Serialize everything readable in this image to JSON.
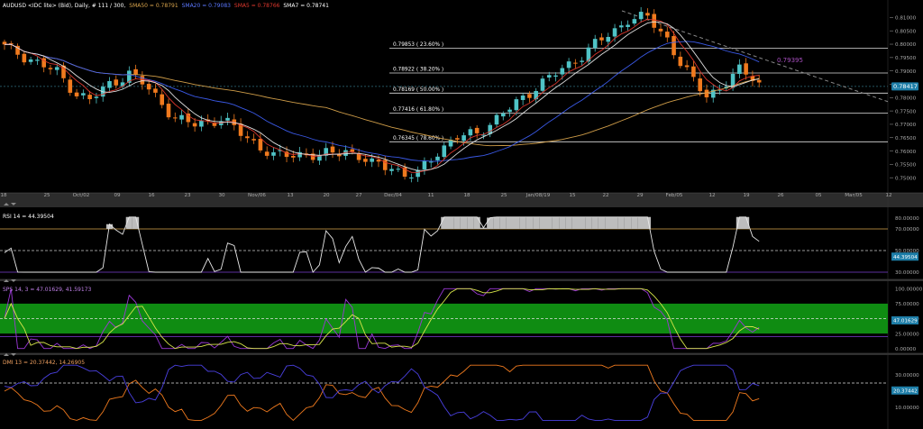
{
  "header": {
    "instrument": "AUDUSD <IDC lite> (Bid), Daily, # 111 / 300,",
    "sma50": "SMA50 = 0.78791",
    "sma20": "SMA20 = 0.79083",
    "sma5": "SMA5 = 0.78766",
    "sma7": "SMA7 = 0.78741"
  },
  "colors": {
    "background": "#000000",
    "bull": "#4fc3c6",
    "bear": "#f07a1e",
    "sma50": "#d9a44c",
    "sma20": "#3d5ef2",
    "sma5": "#e0382e",
    "sma7": "#e8e8e8",
    "rsi": "#e8e8e8",
    "stoch_k": "#9a38d6",
    "stoch_d": "#d8e64a",
    "stoch_zone": "#0f8c12",
    "dmi_plus": "#f07a1e",
    "dmi_minus": "#4a40e0",
    "price_box": "#1e7ea8"
  },
  "chart_data": [
    {
      "type": "candlestick",
      "panel": "price",
      "ylim": [
        0.745,
        0.8125
      ],
      "y_ticks": [
        "0.81000",
        "0.80500",
        "0.80000",
        "0.79500",
        "0.79000",
        "0.78500",
        "0.78000",
        "0.77500",
        "0.77000",
        "0.76500",
        "0.76000",
        "0.75500",
        "0.75000"
      ],
      "y_tick_values": [
        0.81,
        0.805,
        0.8,
        0.795,
        0.79,
        0.785,
        0.78,
        0.775,
        0.77,
        0.765,
        0.76,
        0.755,
        0.75
      ],
      "x_ticks": [
        "18",
        "25",
        "Oct/02",
        "09",
        "16",
        "23",
        "30",
        "Nov/06",
        "13",
        "20",
        "27",
        "Dec/04",
        "11",
        "18",
        "25",
        "Jan/08/19",
        "15",
        "22",
        "29",
        "Feb/05",
        "12",
        "19",
        "26",
        "05",
        "Mar/05",
        "12",
        "19"
      ],
      "last_price": "0.78417",
      "last_price_value": 0.7842,
      "downtrend_label": "0.79395",
      "fib_levels": [
        {
          "label": "0.79853 ( 23.60% )",
          "value": 0.79853
        },
        {
          "label": "0.78922 ( 38.20% )",
          "value": 0.78922
        },
        {
          "label": "0.78169 ( 50.00% )",
          "value": 0.78169
        },
        {
          "label": "0.77416 ( 61.80% )",
          "value": 0.77416
        },
        {
          "label": "0.76345 ( 78.60% )",
          "value": 0.76345
        }
      ]
    },
    {
      "type": "line",
      "panel": "rsi",
      "title": "RSI 14 = 44.39504",
      "ylim": [
        25,
        85
      ],
      "y_ticks": [
        "80.00000",
        "70.00000",
        "50.00000",
        "30.00000"
      ],
      "y_tick_values": [
        80,
        70,
        50,
        30
      ],
      "last_value": "44.39504",
      "last_value_num": 44.4
    },
    {
      "type": "line",
      "panel": "stochastic",
      "title": "SPS 14, 3 = 47.01629, 41.59173",
      "ylim": [
        -5,
        105
      ],
      "y_ticks": [
        "100.00000",
        "75.00000",
        "50.00000",
        "25.00000",
        "0.00000"
      ],
      "y_tick_values": [
        100,
        75,
        50,
        25,
        0
      ],
      "last_value": "47.01629",
      "last_value_num": 47.0
    },
    {
      "type": "line",
      "panel": "dmi",
      "title": "DMI 13 = 20.37442, 14.26905",
      "ylim": [
        0,
        40
      ],
      "y_ticks": [
        "30.00000",
        "10.00000"
      ],
      "y_tick_values": [
        30,
        10
      ],
      "last_value": "20.37442",
      "last_value_num": 20.4
    }
  ]
}
